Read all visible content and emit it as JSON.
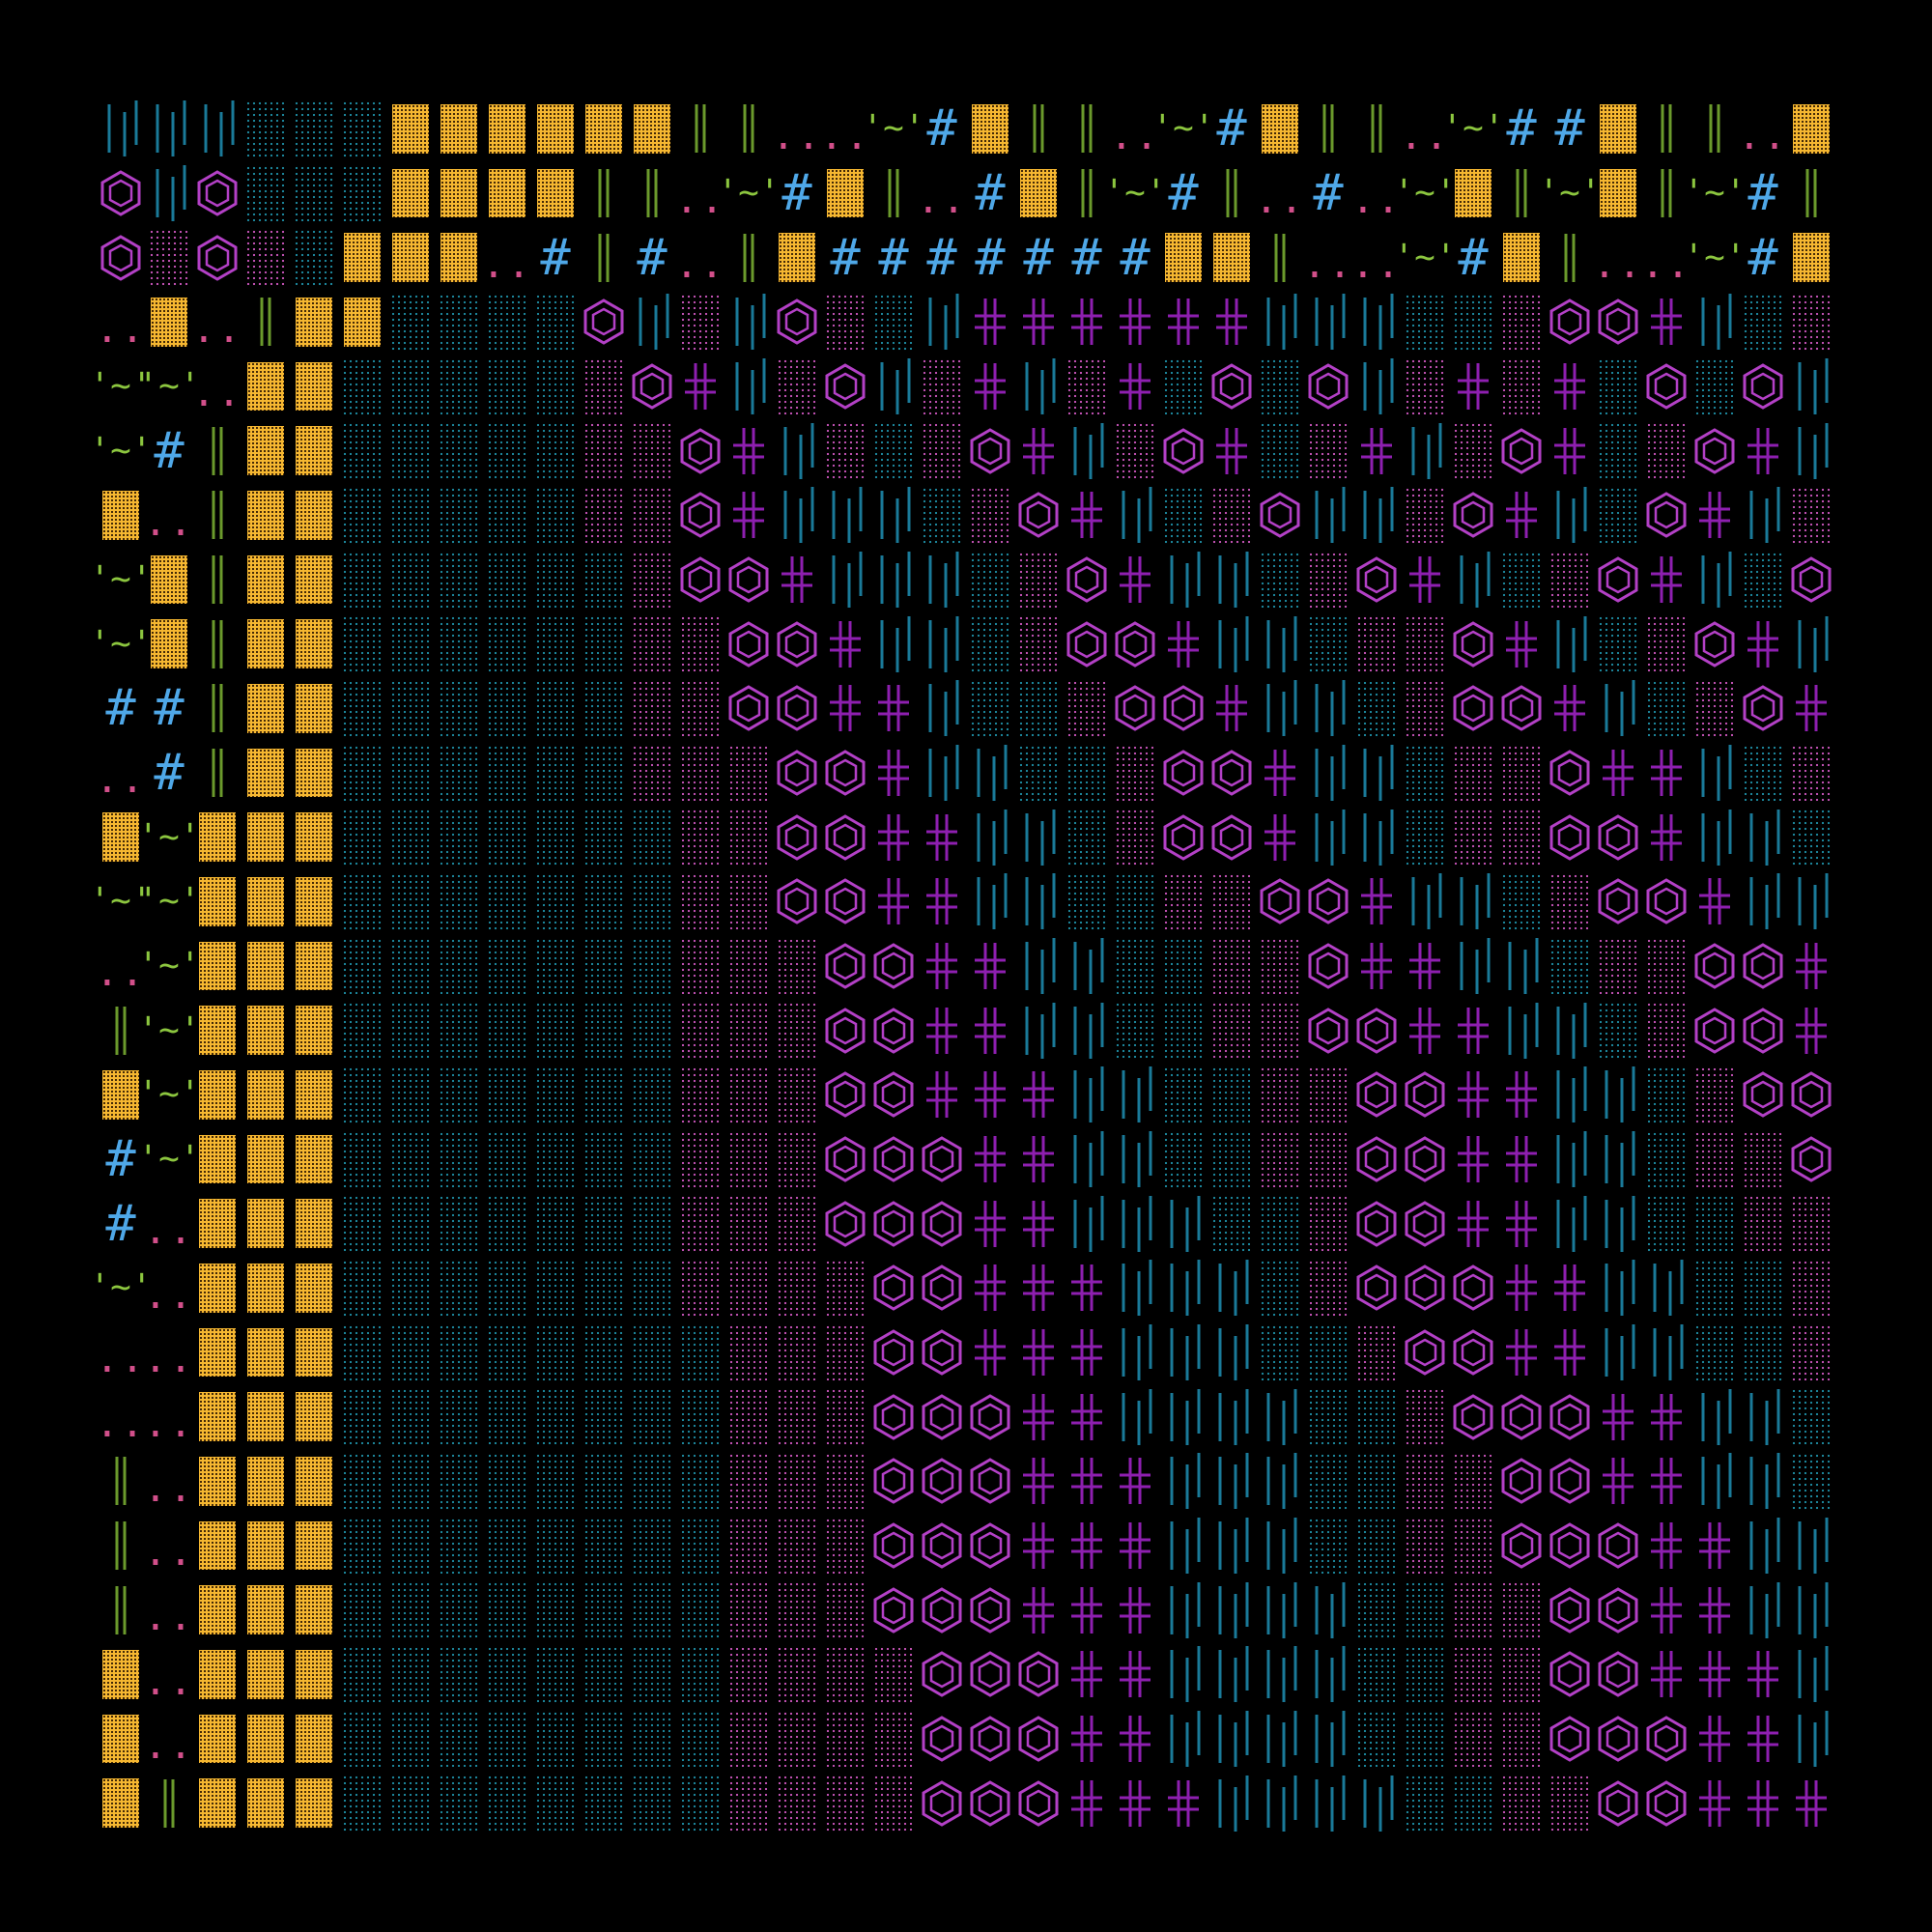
{
  "background": "#000000",
  "grid": {
    "columns": 36,
    "rows": 27,
    "rows_data": [
      "BBBDDDOOOOOOVVPPGHOVVPGHOVVPGHHOVVPO",
      "XBXDDDOOOOVVPGHOVPHOVGHVPHPGOVGOVGHV",
      "XMXMDOOOPHVHPVOHHHHHHHOOVPPGHOVPPGHO",
      "POPVOODDDDXBMBXMDBCCCCCCBBBDDMXXCBDM",
      "GGPOODDDDDMXCBMXBMCBMCDXDXBMCMCDXDXB",
      "GHVOODDDDDMMXCBMDMXCBMXCDMCBMXCDMXCB",
      "OPVOODDDDDMMXCBBBDMXCBDMXBBMXCBDXCBM",
      "GOVOODDDDDDMXXCBBBDMXCBBDMXCBDMXCBDX",
      "GOVOODDDDDDMMXXCBBDMXXCBBDMMXCBDMXCB",
      "HHVOODDDDDDMMXXCCBDDMXXCBBDMXXCBDMXC",
      "PHVOODDDDDDMMMXXCBBDDMXXCBBDMMXCCBDM",
      "OGOOODDDDDDDMMXXCCBBDMXXCBBDMMXXCBBD",
      "GGOOODDDDDDDMMXXCCBBDDMMXXCBBDMXXCBB",
      "PGOOODDDDDDDMMMXXCCBBDDMMXCCBBDMMXXC",
      "VGOOODDDDDDDMMMXXCCBBDDMMXXCCBBDMXXC",
      "OGOOODDDDDDDMMMXXCCCBBDDMMXXCCBBDMXX",
      "HGOOODDDDDDDMMMXXXCCBBDDMMXXCCBBDMMX",
      "HPOOODDDDDDDMMMXXXCCBBBDDMXXCCBBDDMM",
      "GPOOODDDDDDDMMMMXXCCCBBBDMXXXCCBBDDM",
      "PPOOODDDDDDDDMMMXXCCCBBBDDMXXCCBBDDM",
      "PPOOODDDDDDDDMMMXXXCCBBBBDDMXXXCCBBD",
      "VPOOODDDDDDDDMMMXXXCCCBBBDDMMXXCCBBD",
      "VPOOODDDDDDDDMMMXXXCCCBBBDDMMXXXCCBB",
      "VPOOODDDDDDDDMMMXXXCCCBBBBDDMMXXCCBB",
      "OPOOODDDDDDDDMMMMXXXCCBBBBDDMMXXCCCB",
      "OPOOODDDDDDDDMMMMXXXCCBBBBDDMMXXXCCB",
      "OVOOODDDDDDDDMMMMXXXCCCBBBBDDMMXXCCC"
    ],
    "glyph_legend": {
      "O": {
        "name": "orange-block",
        "color": "#f5b731"
      },
      "D": {
        "name": "teal-dots",
        "color": "#1d8aa0"
      },
      "M": {
        "name": "magenta-dots",
        "color": "#c653b7"
      },
      "X": {
        "name": "hexagon",
        "color": "#b340c6"
      },
      "C": {
        "name": "cross",
        "color": "#8e1fb0"
      },
      "B": {
        "name": "teal-bars",
        "color": "#1a7a99"
      },
      "V": {
        "name": "green-double-bar",
        "color": "#6b9a2c"
      },
      "H": {
        "name": "blue-hash",
        "color": "#4fa8e8"
      },
      "G": {
        "name": "green-tilde",
        "color": "#8cc63f"
      },
      "P": {
        "name": "pink-pair",
        "color": "#d24f8a"
      }
    }
  }
}
